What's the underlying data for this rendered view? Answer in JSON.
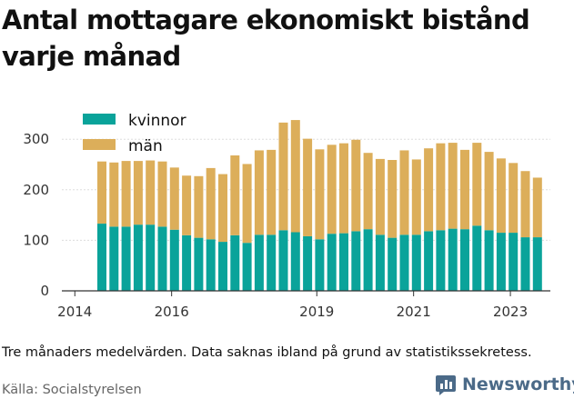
{
  "title": "Antal mottagare ekonomiskt bistånd varje månad",
  "note": "Tre månaders medelvärden. Data saknas ibland på grund av statistikssekretess.",
  "source": "Källa: Socialstyrelsen",
  "brand": {
    "name": "Newsworthy",
    "icon": "chart-bar-logo-icon"
  },
  "colors": {
    "kvinnor": "#0aa39a",
    "man": "#dcae5a",
    "grid": "#dddddd",
    "axis": "#333333"
  },
  "chart_data": {
    "type": "bar",
    "stacked": true,
    "x_tick_labels": [
      "2014",
      "2016",
      "2019",
      "2021",
      "2023"
    ],
    "y_tick_labels": [
      "0",
      "100",
      "200",
      "300"
    ],
    "ylim": [
      0,
      340
    ],
    "grid": true,
    "legend": "top-left",
    "categories": [
      "2014-05",
      "2014-08",
      "2014-11",
      "2015-02",
      "2015-05",
      "2015-08",
      "2015-11",
      "2016-02",
      "2016-05",
      "2016-08",
      "2016-11",
      "2017-02",
      "2017-05",
      "2017-08",
      "2017-11",
      "2018-02",
      "2018-05",
      "2018-08",
      "2018-11",
      "2019-02",
      "2019-05",
      "2019-08",
      "2019-11",
      "2020-02",
      "2020-05",
      "2020-08",
      "2020-11",
      "2021-02",
      "2021-05",
      "2021-08",
      "2021-11",
      "2022-02",
      "2022-05",
      "2022-08",
      "2022-11",
      "2023-02",
      "2023-05"
    ],
    "series": [
      {
        "name": "kvinnor",
        "values": [
          133,
          127,
          127,
          131,
          131,
          127,
          121,
          110,
          105,
          102,
          97,
          110,
          95,
          111,
          111,
          120,
          116,
          108,
          102,
          113,
          114,
          118,
          122,
          111,
          105,
          111,
          111,
          118,
          120,
          123,
          122,
          129,
          120,
          115,
          115,
          106,
          106
        ]
      },
      {
        "name": "män",
        "values": [
          123,
          127,
          130,
          126,
          127,
          129,
          123,
          118,
          122,
          141,
          134,
          158,
          156,
          167,
          168,
          213,
          222,
          193,
          178,
          176,
          178,
          181,
          151,
          150,
          154,
          167,
          149,
          164,
          172,
          170,
          157,
          164,
          155,
          147,
          138,
          131,
          118
        ]
      }
    ]
  }
}
